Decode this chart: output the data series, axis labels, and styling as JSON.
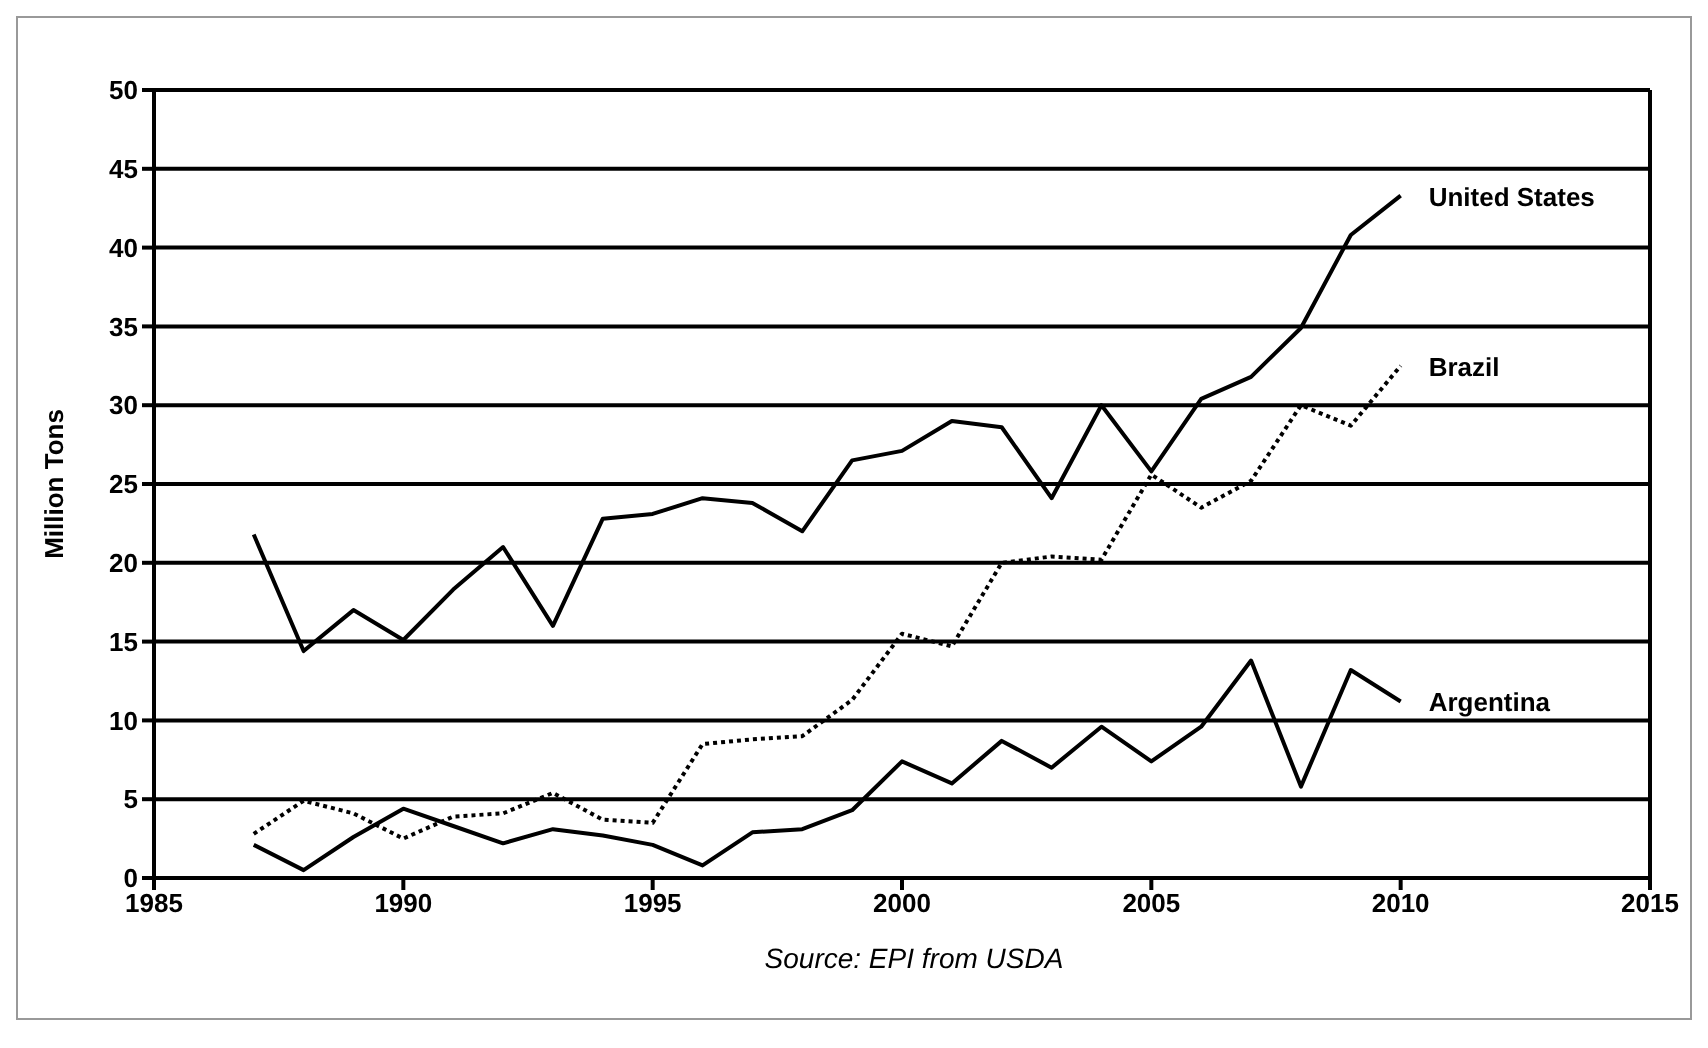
{
  "chart_data": {
    "type": "line",
    "ylabel": "Million Tons",
    "annotations": [
      "Source: EPI from USDA"
    ],
    "x": [
      1987,
      1988,
      1989,
      1990,
      1991,
      1992,
      1993,
      1994,
      1995,
      1996,
      1997,
      1998,
      1999,
      2000,
      2001,
      2002,
      2003,
      2004,
      2005,
      2006,
      2007,
      2008,
      2009,
      2010
    ],
    "series": [
      {
        "name": "United States",
        "color": "#000000",
        "line_style": "solid",
        "values": [
          21.8,
          14.4,
          17,
          15.1,
          18.3,
          21,
          16,
          22.8,
          23.1,
          24.1,
          23.8,
          22,
          26.5,
          27.1,
          29,
          28.6,
          24.1,
          30,
          25.8,
          30.4,
          31.8,
          34.9,
          40.8,
          43.3
        ]
      },
      {
        "name": "Brazil",
        "color": "#000000",
        "line_style": "dotted",
        "values": [
          2.8,
          4.9,
          4.1,
          2.5,
          3.9,
          4.1,
          5.4,
          3.7,
          3.5,
          8.5,
          8.8,
          9,
          11.3,
          15.5,
          14.7,
          20,
          20.4,
          20.2,
          25.6,
          23.5,
          25.2,
          30,
          28.7,
          32.5
        ]
      },
      {
        "name": "Argentina",
        "color": "#000000",
        "line_style": "solid",
        "values": [
          2.1,
          0.5,
          2.6,
          4.4,
          3.3,
          2.2,
          3.1,
          2.7,
          2.1,
          0.8,
          2.9,
          3.1,
          4.3,
          7.4,
          6,
          8.7,
          7,
          9.6,
          7.4,
          9.6,
          13.8,
          5.8,
          13.2,
          11.2
        ]
      }
    ],
    "xlim": [
      1985,
      2015
    ],
    "xticks": [
      1985,
      1990,
      1995,
      2000,
      2005,
      2010,
      2015
    ],
    "ylim": [
      0,
      50
    ],
    "yticks": [
      0,
      5,
      10,
      15,
      20,
      25,
      30,
      35,
      40,
      45,
      50
    ],
    "grid": "y",
    "legend": false,
    "marker": "none"
  }
}
